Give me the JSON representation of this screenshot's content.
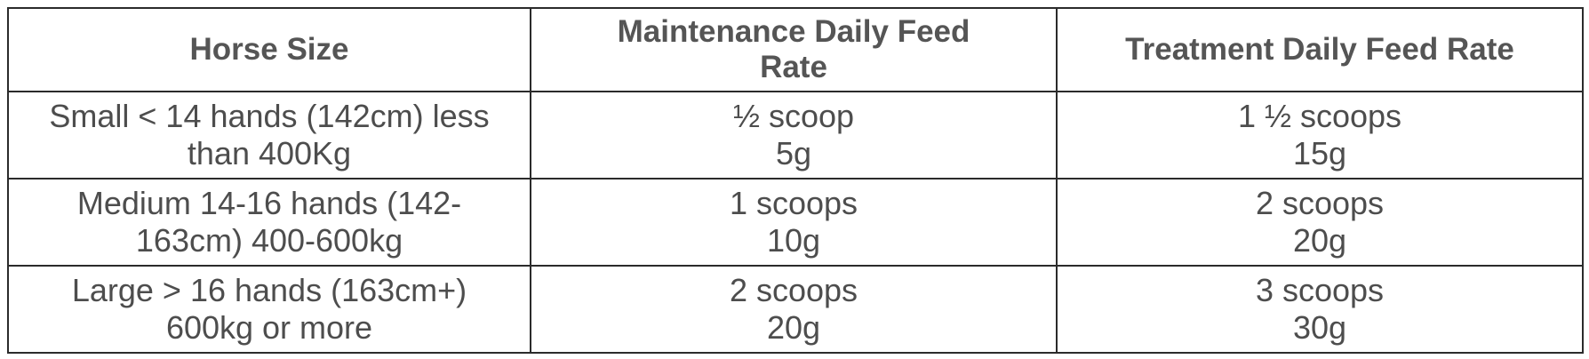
{
  "table": {
    "headers": [
      {
        "lines": [
          "Horse Size"
        ]
      },
      {
        "lines": [
          "Maintenance Daily Feed",
          "Rate"
        ]
      },
      {
        "lines": [
          "Treatment Daily Feed Rate"
        ]
      }
    ],
    "rows": [
      {
        "size": [
          "Small < 14 hands (142cm) less",
          "than 400Kg"
        ],
        "maintenance": [
          "½ scoop",
          "5g"
        ],
        "treatment": [
          "1 ½ scoops",
          "15g"
        ]
      },
      {
        "size": [
          "Medium 14-16 hands (142-",
          "163cm) 400-600kg"
        ],
        "maintenance": [
          "1 scoops",
          "10g"
        ],
        "treatment": [
          "2 scoops",
          "20g"
        ]
      },
      {
        "size": [
          "Large > 16 hands (163cm+)",
          "600kg or more"
        ],
        "maintenance": [
          "2 scoops",
          "20g"
        ],
        "treatment": [
          "3 scoops",
          "30g"
        ]
      }
    ]
  }
}
